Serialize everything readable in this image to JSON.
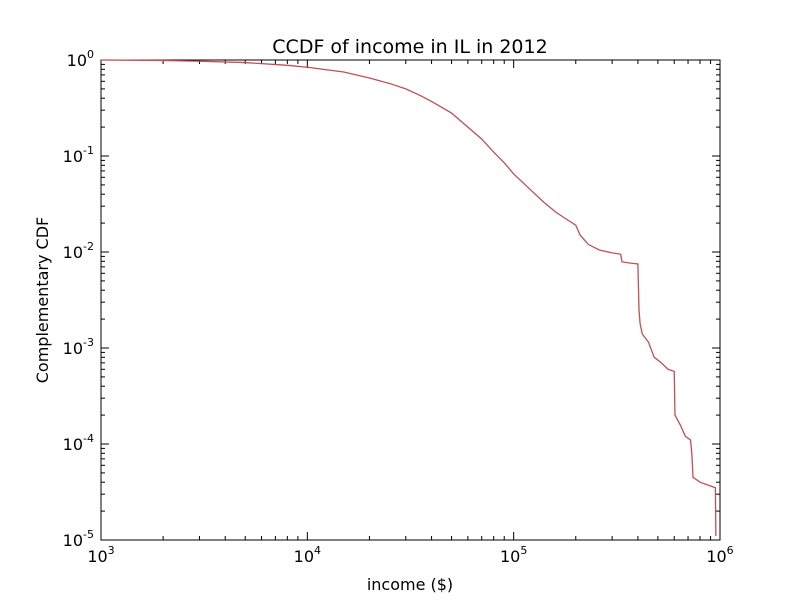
{
  "chart_data": {
    "type": "line",
    "title": "CCDF of income in IL in 2012",
    "xlabel": "income ($)",
    "ylabel": "Complementary CDF",
    "xscale": "log",
    "yscale": "log",
    "xlim": [
      1000,
      1000000
    ],
    "ylim": [
      1e-05,
      1
    ],
    "grid": false,
    "legend": "none",
    "series_color": "#c44e52",
    "xticks": [
      {
        "base": "10",
        "exp": "3",
        "value": 1000
      },
      {
        "base": "10",
        "exp": "4",
        "value": 10000
      },
      {
        "base": "10",
        "exp": "5",
        "value": 100000
      },
      {
        "base": "10",
        "exp": "6",
        "value": 1000000
      }
    ],
    "yticks": [
      {
        "base": "10",
        "exp": "0",
        "value": 1
      },
      {
        "base": "10",
        "exp": "-1",
        "value": 0.1
      },
      {
        "base": "10",
        "exp": "-2",
        "value": 0.01
      },
      {
        "base": "10",
        "exp": "-3",
        "value": 0.001
      },
      {
        "base": "10",
        "exp": "-4",
        "value": 0.0001
      },
      {
        "base": "10",
        "exp": "-5",
        "value": 1e-05
      }
    ],
    "series": [
      {
        "x": [
          1000,
          2000,
          3000,
          5000,
          8000,
          10000,
          15000,
          20000,
          25000,
          30000,
          35000,
          40000,
          50000,
          60000,
          70000,
          80000,
          90000,
          100000,
          120000,
          140000,
          160000,
          180000,
          200000,
          210000,
          230000,
          260000,
          300000,
          330000,
          335000,
          360000,
          400000,
          405000,
          410000,
          420000,
          450000,
          480000,
          520000,
          560000,
          600000,
          605000,
          640000,
          680000,
          720000,
          730000,
          740000,
          800000,
          950000,
          955000
        ],
        "y": [
          1.0,
          0.99,
          0.97,
          0.94,
          0.88,
          0.84,
          0.75,
          0.65,
          0.57,
          0.5,
          0.43,
          0.37,
          0.28,
          0.2,
          0.15,
          0.11,
          0.085,
          0.065,
          0.045,
          0.033,
          0.026,
          0.022,
          0.019,
          0.015,
          0.012,
          0.0105,
          0.0098,
          0.0095,
          0.0079,
          0.0077,
          0.0075,
          0.0025,
          0.0018,
          0.0014,
          0.00115,
          0.0008,
          0.0007,
          0.0006,
          0.00057,
          0.0002,
          0.00016,
          0.00012,
          0.00011,
          8e-05,
          4.5e-05,
          4e-05,
          3.5e-05,
          1.1e-05
        ]
      }
    ]
  }
}
